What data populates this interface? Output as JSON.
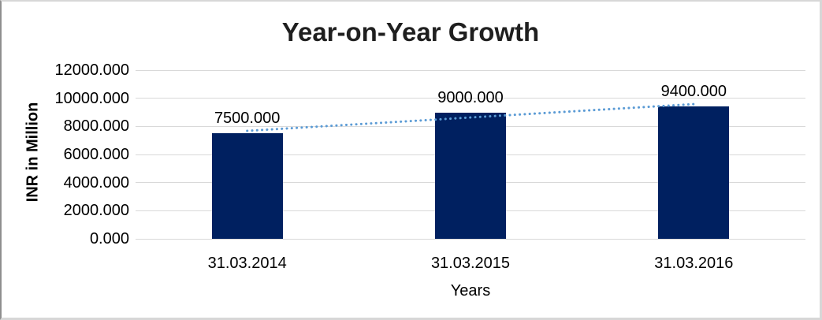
{
  "chart_data": {
    "type": "bar",
    "title": "Year-on-Year Growth",
    "xlabel": "Years",
    "ylabel": "INR in Million",
    "categories": [
      "31.03.2014",
      "31.03.2015",
      "31.03.2016"
    ],
    "values": [
      7500,
      9000,
      9400
    ],
    "data_labels": [
      "7500.000",
      "9000.000",
      "9400.000"
    ],
    "y_ticks": [
      "12000.000",
      "10000.000",
      "8000.000",
      "6000.000",
      "4000.000",
      "2000.000",
      "0.000"
    ],
    "y_tick_values": [
      12000,
      10000,
      8000,
      6000,
      4000,
      2000,
      0
    ],
    "ylim": [
      0,
      12000
    ],
    "grid": true,
    "legend": "none",
    "trendline": {
      "style": "dotted",
      "start_value": 7683,
      "end_value": 9583,
      "start_category_index": 0,
      "end_category_index": 2
    },
    "colors": {
      "bar": "#002060",
      "trendline": "#5b9bd5",
      "gridline": "#d9d9d9",
      "title_text": "#1f1f1f",
      "axis_text": "#000000"
    }
  }
}
